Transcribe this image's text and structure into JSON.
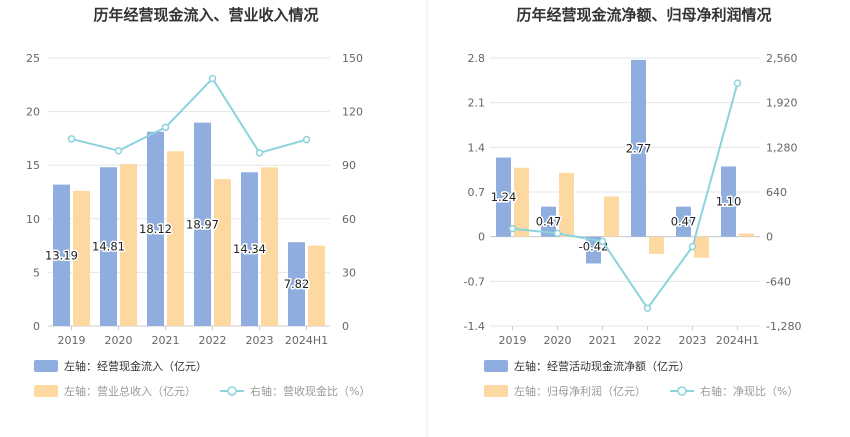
{
  "colors": {
    "bar_blue": "#8fadde",
    "bar_orange": "#fdd8a0",
    "line_cyan": "#8cd3dc",
    "grid": "#e6e6e6",
    "axis": "#cccccc",
    "tick_text": "#666666",
    "title_text": "#333333",
    "legend_dark": "#333333",
    "legend_muted": "#999999"
  },
  "chart_data": [
    {
      "type": "bar",
      "title": "历年经营现金流入、营业收入情况",
      "categories": [
        "2019",
        "2020",
        "2021",
        "2022",
        "2023",
        "2024H1"
      ],
      "series": [
        {
          "name": "左轴：经营现金流入（亿元）",
          "kind": "bar",
          "axis": "left",
          "color": "#8fadde",
          "values": [
            13.19,
            14.81,
            18.12,
            18.97,
            14.34,
            7.82
          ],
          "labels": [
            "13.19",
            "14.81",
            "18.12",
            "18.97",
            "14.34",
            "7.82"
          ]
        },
        {
          "name": "左轴：营业总收入（亿元）",
          "kind": "bar",
          "axis": "left",
          "color": "#fdd8a0",
          "values": [
            12.6,
            15.1,
            16.3,
            13.7,
            14.8,
            7.5
          ]
        },
        {
          "name": "右轴：营收现金比（%）",
          "kind": "line",
          "axis": "right",
          "color": "#8cd3dc",
          "values": [
            104.7,
            98.1,
            111.2,
            138.5,
            96.9,
            104.3
          ]
        }
      ],
      "left_axis": {
        "min": 0,
        "max": 25,
        "ticks": [
          "0",
          "5",
          "10",
          "15",
          "20",
          "25"
        ]
      },
      "right_axis": {
        "min": 0,
        "max": 150,
        "ticks": [
          "0",
          "30",
          "60",
          "90",
          "120",
          "150"
        ]
      },
      "grid": true,
      "legend_position": "bottom"
    },
    {
      "type": "bar",
      "title": "历年经营现金流净额、归母净利润情况",
      "categories": [
        "2019",
        "2020",
        "2021",
        "2022",
        "2023",
        "2024H1"
      ],
      "series": [
        {
          "name": "左轴：经营活动现金流净额（亿元）",
          "kind": "bar",
          "axis": "left",
          "color": "#8fadde",
          "values": [
            1.24,
            0.47,
            -0.42,
            2.77,
            0.47,
            1.1
          ],
          "labels": [
            "1.24",
            "0.47",
            "-0.42",
            "2.77",
            "0.47",
            "1.10"
          ]
        },
        {
          "name": "左轴：归母净利润（亿元）",
          "kind": "bar",
          "axis": "left",
          "color": "#fdd8a0",
          "values": [
            1.08,
            1.0,
            0.63,
            -0.27,
            -0.33,
            0.05
          ]
        },
        {
          "name": "右轴：净现比（%）",
          "kind": "line",
          "axis": "right",
          "color": "#8cd3dc",
          "values": [
            115,
            47,
            -67,
            -1026,
            -142,
            2200
          ]
        }
      ],
      "left_axis": {
        "min": -1.4,
        "max": 2.8,
        "ticks": [
          "-1.4",
          "-0.7",
          "0",
          "0.7",
          "1.4",
          "2.1",
          "2.8"
        ]
      },
      "right_axis": {
        "min": -1280,
        "max": 2560,
        "ticks": [
          "-1,280",
          "-640",
          "0",
          "640",
          "1,280",
          "1,920",
          "2,560"
        ]
      },
      "grid": true,
      "legend_position": "bottom"
    }
  ]
}
